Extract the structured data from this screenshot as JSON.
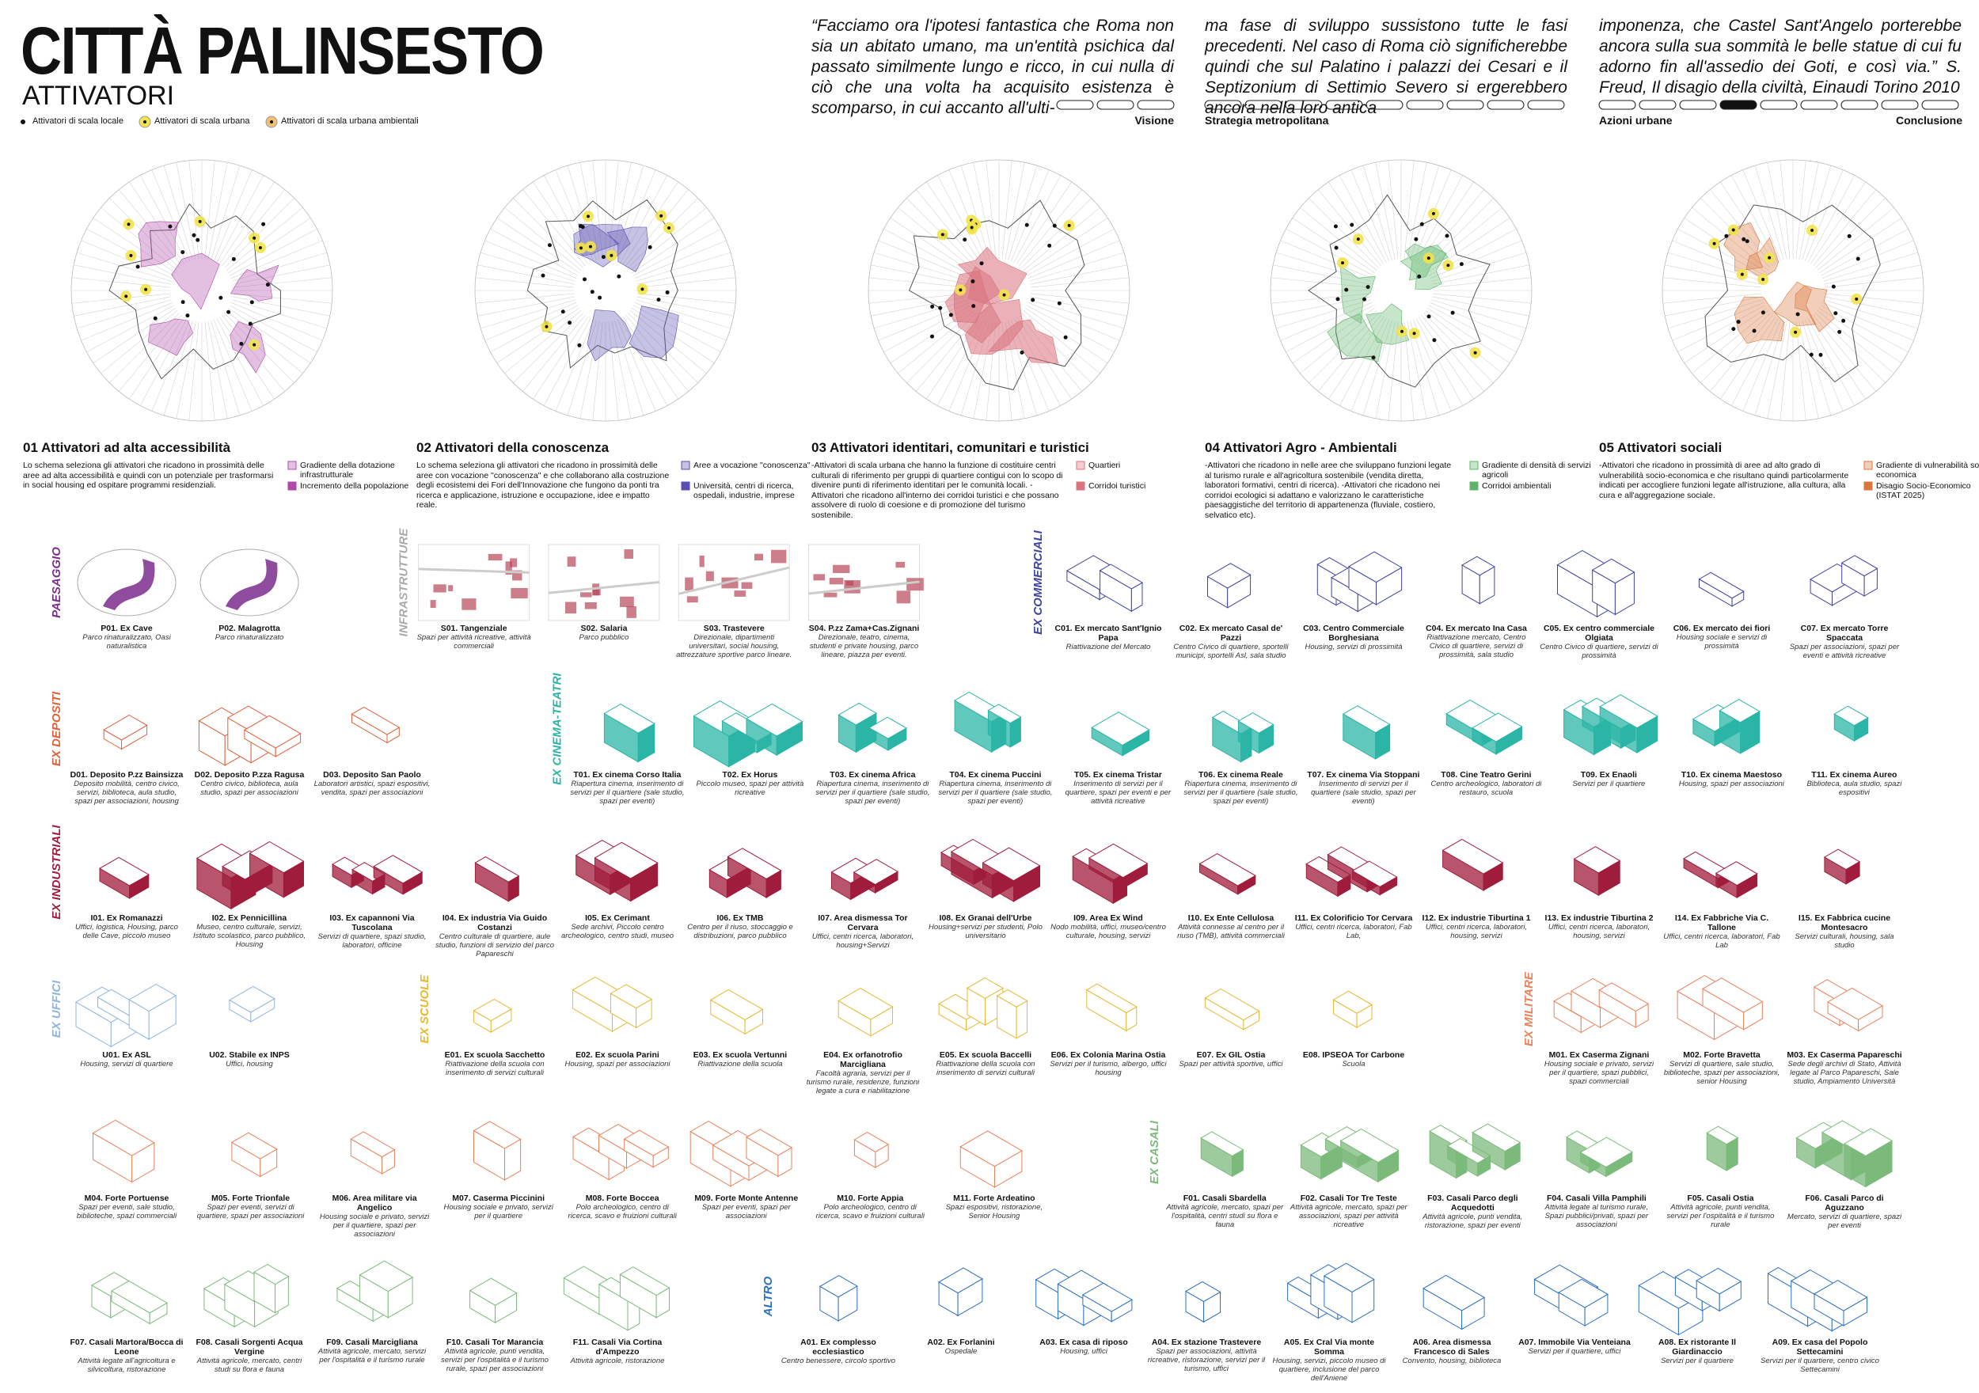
{
  "header": {
    "title": "CITTÀ PALINSESTO",
    "subtitle": "ATTIVATORI"
  },
  "legend": [
    "Attivatori di scala locale",
    "Attivatori di scala urbana",
    "Attivatori di scala urbana ambientali"
  ],
  "quote": [
    "“Facciamo ora l'ipotesi fantastica che Roma non sia un abitato umano, ma un'entità psichica dal passato similmente lungo e ricco, in cui nulla di ciò che una volta ha acquisito esistenza è scomparso, in cui accanto all'ulti-",
    "ma fase di sviluppo sussistono tutte le fasi precedenti. Nel caso di Roma ciò significherebbe quindi che sul Palatino i palazzi dei Cesari e il Septizonium di Settimio Severo si ergerebbero ancora nella loro antica",
    "imponenza, che Castel Sant'Angelo porterebbe ancora sulla sua sommità le belle statue di cui fu adorno fin all'assedio dei Goti, e così via.” S. Freud, Il disagio della civiltà, Einaudi Torino 2010"
  ],
  "nav": [
    "Visione",
    "Strategia metropolitana",
    "Azioni urbane",
    "Conclusione"
  ],
  "panels": [
    {
      "title": "01 Attivatori ad alta accessibilità",
      "color": "#b04aa8",
      "text": "Lo schema seleziona gli attivatori che ricadono in prossimità delle aree ad alta accessibilità e quindi con un potenziale per trasformarsi in social housing ed ospitare programmi residenziali.",
      "legend": [
        "Gradiente della dotazione infrastrutturale",
        "Incremento della popolazione"
      ]
    },
    {
      "title": "02 Attivatori della conoscenza",
      "color": "#5a4fb0",
      "text": "Lo schema seleziona gli attivatori che ricadono in prossimità delle aree con vocazione \"conoscenza\" e che collaborano alla costruzione degli ecosistemi dei Fori dell'Innovazione che fungono da ponti tra ricerca e applicazione, istruzione e occupazione, idee e impatto reale.",
      "legend": [
        "Aree a vocazione \"conoscenza\"",
        "Università, centri di ricerca, ospedali, industrie, imprese"
      ]
    },
    {
      "title": "03 Attivatori identitari, comunitari e turistici",
      "color": "#d9737e",
      "text": "-Attivatori di scala urbana che hanno la funzione di costituire centri culturali di riferimento per gruppi di quartiere contigui con lo scopo di divenire punti di riferimento identitari per le comunità locali. -Attivatori che ricadono all'interno dei corridoi turistici e che possano assolvere di ruolo di coesione e di promozione del turismo sostenibile.",
      "legend": [
        "Quartieri",
        "Corridoi turistici"
      ]
    },
    {
      "title": "04 Attivatori Agro - Ambientali",
      "color": "#5fb46a",
      "text": "-Attivatori che ricadono in nelle aree che sviluppano funzioni legate al turismo rurale e all'agricoltura sostenibile (vendita diretta, laboratori formativi, centri di ricerca). -Attivatori che ricadono nei corridoi ecologici si adattano e valorizzano le caratteristiche paesaggistiche del territorio di appartenenza (fluviale, costiero, selvatico etc).",
      "legend": [
        "Gradiente di densità di servizi agricoli",
        "Corridoi ambientali"
      ]
    },
    {
      "title": "05 Attivatori sociali",
      "color": "#d9763a",
      "text": "-Attivatori che ricadono in prossimità di aree ad alto grado di vulnerabilità socio-economica e che risultano quindi particolarmente indicati per accogliere funzioni legate all'istruzione, alla cultura, alla cura e all'aggregazione sociale.",
      "legend": [
        "Gradiente di vulnerabilità socio-economica",
        "Disagio Socio-Economico (ISTAT 2025)"
      ]
    }
  ],
  "groups": [
    {
      "label": "PAESAGGIO",
      "color": "#7b2d8e",
      "items": [
        {
          "name": "P01. Ex Cave",
          "desc": "Parco rinaturalizzato, Oasi naturalistica"
        },
        {
          "name": "P02. Malagrotta",
          "desc": "Parco rinaturalizzato"
        }
      ]
    },
    {
      "label": "INFRASTRUTTURE",
      "color": "#a9a9a9",
      "items": [
        {
          "name": "S01. Tangenziale",
          "desc": "Spazi per attività ricreative, attività commerciali"
        },
        {
          "name": "S02. Salaria",
          "desc": "Parco pubblico"
        },
        {
          "name": "S03. Trastevere",
          "desc": "Direzionale, dipartimenti universitari, social housing, attrezzature sportive parco lineare."
        },
        {
          "name": "S04. P.zz Zama+Cas.Zignani",
          "desc": "Direzionale, teatro, cinema, studenti e private housing, parco lineare, piazza per eventi."
        }
      ]
    },
    {
      "label": "EX COMMERCIALI",
      "color": "#3f43a0",
      "items": [
        {
          "name": "C01. Ex mercato Sant'Ignio Papa",
          "desc": "Riattivazione del Mercato"
        },
        {
          "name": "C02. Ex mercato Casal de' Pazzi",
          "desc": "Centro Civico di quartiere, sportelli municipi, sportelli Asl, sala studio"
        },
        {
          "name": "C03. Centro Commerciale Borghesiana",
          "desc": "Housing, servizi di prossimità"
        },
        {
          "name": "C04. Ex mercato Ina Casa",
          "desc": "Riattivazione mercato, Centro Civico di quartiere, servizi di prossimità, sala studio"
        },
        {
          "name": "C05. Ex centro commerciale Olgiata",
          "desc": "Centro Civico di quartiere, servizi di prossimità"
        },
        {
          "name": "C06. Ex mercato dei fiori",
          "desc": "Housing sociale e servizi di prossimità"
        },
        {
          "name": "C07. Ex mercato Torre Spaccata",
          "desc": "Spazi per associazioni, spazi per eventi e attività ricreative"
        }
      ]
    },
    {
      "label": "EX DEPOSITI",
      "color": "#e0603a",
      "items": [
        {
          "name": "D01. Deposito P.zz Bainsizza",
          "desc": "Deposito mobilità, centro civico, servizi, biblioteca, aula studio, spazi per associazioni, housing"
        },
        {
          "name": "D02. Deposito P.zza Ragusa",
          "desc": "Centro civico, biblioteca, aula studio, spazi per associazioni"
        },
        {
          "name": "D03. Deposito San Paolo",
          "desc": "Laboratori artistici, spazi espositivi, vendita, spazi per associazioni"
        }
      ]
    },
    {
      "label": "EX CINEMA-TEATRI",
      "color": "#2bb5a7",
      "items": [
        {
          "name": "T01. Ex cinema Corso Italia",
          "desc": "Riapertura cinema, inserimento di servizi per il quartiere (sale studio, spazi per eventi)"
        },
        {
          "name": "T02. Ex Horus",
          "desc": "Piccolo museo, spazi per attività ricreative"
        },
        {
          "name": "T03. Ex cinema Africa",
          "desc": "Riapertura cinema, inserimento di servizi per il quartiere (sale studio, spazi per eventi)"
        },
        {
          "name": "T04. Ex cinema Puccini",
          "desc": "Riapertura cinema, inserimento di servizi per il quartiere (sale studio, spazi per eventi)"
        },
        {
          "name": "T05. Ex cinema Tristar",
          "desc": "Inserimento di servizi per il quartiere, spazi per eventi e per attività ricreative"
        },
        {
          "name": "T06. Ex cinema Reale",
          "desc": "Riapertura cinema, inserimento di servizi per il quartiere (sale studio, spazi per eventi)"
        },
        {
          "name": "T07. Ex cinema Via Stoppani",
          "desc": "Inserimento di servizi per il quartiere (sale studio, spazi per eventi)"
        },
        {
          "name": "T08. Cine Teatro Gerini",
          "desc": "Centro archeologico, laboratori di restauro, scuola"
        },
        {
          "name": "T09. Ex Enaoli",
          "desc": "Servizi per il quartiere"
        },
        {
          "name": "T10. Ex cinema Maestoso",
          "desc": "Housing, spazi per associazioni"
        },
        {
          "name": "T11. Ex cinema Aureo",
          "desc": "Biblioteca, aula studio, spazi espositivi"
        }
      ]
    },
    {
      "label": "EX INDUSTRIALI",
      "color": "#a01c3c",
      "items": [
        {
          "name": "I01. Ex Romanazzi",
          "desc": "Uffici, logistica, Housing, parco delle Cave, piccolo museo"
        },
        {
          "name": "I02. Ex Pennicillina",
          "desc": "Museo, centro culturale, servizi, Istituto scolastico, parco pubblico, Housing"
        },
        {
          "name": "I03. Ex capannoni Via Tuscolana",
          "desc": "Servizi di quartiere, spazi studio, laboratori, officine"
        },
        {
          "name": "I04. Ex industria Via Guido Costanzi",
          "desc": "Centro culturale di quartiere, aule studio, funzioni di servizio del parco Papareschi"
        },
        {
          "name": "I05. Ex Cerimant",
          "desc": "Sede archivi, Piccolo centro archeologico, centro studi, museo"
        },
        {
          "name": "I06. Ex TMB",
          "desc": "Centro per il riuso, stoccaggio e distribuzioni, parco pubblico"
        },
        {
          "name": "I07. Area dismessa Tor Cervara",
          "desc": "Uffici, centri ricerca, laboratori, housing+Servizi"
        },
        {
          "name": "I08. Ex Granai dell'Urbe",
          "desc": "Housing+servizi per studenti, Polo universitario"
        },
        {
          "name": "I09. Area Ex Wind",
          "desc": "Nodo mobilità, uffici, museo/centro culturale, housing, servizi"
        },
        {
          "name": "I10. Ex Ente Cellulosa",
          "desc": "Attività connesse al centro per il riuso (TMB), attività commerciali"
        },
        {
          "name": "I11. Ex Colorificio Tor Cervara",
          "desc": "Uffici, centri ricerca, laboratori, Fab Lab,"
        },
        {
          "name": "I12. Ex industrie Tiburtina 1",
          "desc": "Uffici, centri ricerca, laboratori, housing, servizi"
        },
        {
          "name": "I13. Ex industrie Tiburtina 2",
          "desc": "Uffici, centri ricerca, laboratori, housing, servizi"
        },
        {
          "name": "I14. Ex Fabbriche Via C. Tallone",
          "desc": "Uffici, centri ricerca, laboratori, Fab Lab"
        },
        {
          "name": "I15. Ex Fabbrica cucine Montesacro",
          "desc": "Servizi culturali, housing, sala studio"
        }
      ]
    },
    {
      "label": "EX UFFICI",
      "color": "#8fb4e0",
      "items": [
        {
          "name": "U01. Ex ASL",
          "desc": "Housing, servizi di quartiere"
        },
        {
          "name": "U02. Stabile ex INPS",
          "desc": "Uffici, housing"
        }
      ]
    },
    {
      "label": "EX SCUOLE",
      "color": "#e8b830",
      "items": [
        {
          "name": "E01. Ex scuola Sacchetto",
          "desc": "Riattivazione della scuola con inserimento di servizi culturali"
        },
        {
          "name": "E02. Ex scuola Parini",
          "desc": "Housing, spazi per associazioni"
        },
        {
          "name": "E03. Ex scuola Vertunni",
          "desc": "Riattivazione della scuola"
        },
        {
          "name": "E04. Ex orfanotrofio Marcigliana",
          "desc": "Facoltà agraria, servizi per il turismo rurale, residenze, funzioni legate a cura e riabilitazione"
        },
        {
          "name": "E05. Ex scuola Baccelli",
          "desc": "Riattivazione della scuola con inserimento di servizi culturali"
        },
        {
          "name": "E06. Ex Colonia Marina Ostia",
          "desc": "Servizi per il turismo, albergo, uffici housing"
        },
        {
          "name": "E07. Ex GIL Ostia",
          "desc": "Spazi per attività sportive, uffici"
        },
        {
          "name": "E08. IPSEOA Tor Carbone",
          "desc": "Scuola"
        }
      ]
    },
    {
      "label": "EX MILITARE",
      "color": "#e8825a",
      "items": [
        {
          "name": "M01. Ex Caserma Zignani",
          "desc": "Housing sociale e privato, servizi per il quartiere, spazi pubblici, spazi commerciali"
        },
        {
          "name": "M02. Forte Bravetta",
          "desc": "Servizi di quartiere, sale studio, biblioteche, spazi per associazioni, senior Housing"
        },
        {
          "name": "M03. Ex Caserma Papareschi",
          "desc": "Sede degli archivi di Stato, Attività legate al Parco Papareschi, Sale studio, Ampiamento Università"
        },
        {
          "name": "M04. Forte Portuense",
          "desc": "Spazi per eventi, sale studio, biblioteche, spazi commerciali"
        },
        {
          "name": "M05. Forte Trionfale",
          "desc": "Spazi per eventi, servizi di quartiere, spazi per associazioni"
        },
        {
          "name": "M06. Area militare via Angelico",
          "desc": "Housing sociale e privato, servizi per il quartiere, spazi per associazioni"
        },
        {
          "name": "M07. Caserma Piccinini",
          "desc": "Housing sociale e privato, servizi per il quartiere"
        },
        {
          "name": "M08. Forte Boccea",
          "desc": "Polo archeologico, centro di ricerca, scavo e fruizioni culturali"
        },
        {
          "name": "M09. Forte Monte Antenne",
          "desc": "Spazi per eventi, spazi per associazioni"
        },
        {
          "name": "M10. Forte Appia",
          "desc": "Polo archeologico, centro di ricerca, scavo e fruizioni culturali"
        },
        {
          "name": "M11. Forte Ardeatino",
          "desc": "Spazi espositivi, ristorazione, Senior Housing"
        }
      ]
    },
    {
      "label": "EX CASALI",
      "color": "#7cba7c",
      "items": [
        {
          "name": "F01. Casali Sbardella",
          "desc": "Attività agricole, mercato, spazi per l'ospitalità, centri studi su flora e fauna"
        },
        {
          "name": "F02. Casali Tor Tre Teste",
          "desc": "Attività agricole, mercato, spazi per associazioni, spazi per attività ricreative"
        },
        {
          "name": "F03. Casali Parco degli Acquedotti",
          "desc": "Attività agricole, punti vendita, ristorazione, spazi per eventi"
        },
        {
          "name": "F04. Casali Villa Pamphili",
          "desc": "Attività legate al turismo rurale, Spazi pubblici/privati, spazi per associazioni"
        },
        {
          "name": "F05. Casali Ostia",
          "desc": "Attività agricole, punti vendita, servizi per l'ospitalità e il turismo rurale"
        },
        {
          "name": "F06. Casali Parco di Aguzzano",
          "desc": "Mercato, servizi di quartiere, spazi per eventi"
        },
        {
          "name": "F07. Casali Martora/Bocca di Leone",
          "desc": "Attività legate all'agricoltura e silvicoltura, ristorazione"
        },
        {
          "name": "F08. Casali Sorgenti Acqua Vergine",
          "desc": "Attività agricole, mercato, centri studi su flora e fauna"
        },
        {
          "name": "F09. Casali Marcigliana",
          "desc": "Attività agricole, mercato, servizi per l'ospitalità e il turismo rurale"
        },
        {
          "name": "F10. Casali Tor Marancia",
          "desc": "Attività agricole, punti vendita, servizi per l'ospitalità e il turismo rurale, spazi per associazioni"
        },
        {
          "name": "F11. Casali Via Cortina d'Ampezzo",
          "desc": "Attività agricole, ristorazione"
        }
      ]
    },
    {
      "label": "ALTRO",
      "color": "#2c6fc0",
      "items": [
        {
          "name": "A01. Ex complesso ecclesiastico",
          "desc": "Centro benessere, circolo sportivo"
        },
        {
          "name": "A02. Ex Forlanini",
          "desc": "Ospedale"
        },
        {
          "name": "A03. Ex casa di riposo",
          "desc": "Housing, uffici"
        },
        {
          "name": "A04. Ex stazione Trastevere",
          "desc": "Spazi per associazioni, attività ricreative, ristorazione, servizi per il turismo, uffici"
        },
        {
          "name": "A05. Ex Cral Via monte Somma",
          "desc": "Housing, servizi, piccolo museo di quartiere, inclusione del parco dell'Aniene"
        },
        {
          "name": "A06. Area dismessa Francesco di Sales",
          "desc": "Convento, housing, biblioteca"
        },
        {
          "name": "A07. Immobile Via Venteiana",
          "desc": "Servizi per il quartiere, uffici"
        },
        {
          "name": "A08. Ex ristorante Il Giardinaccio",
          "desc": "Servizi per il quartiere"
        },
        {
          "name": "A09. Ex casa del Popolo Settecamini",
          "desc": "Servizi per il quartiere, centro civico Settecamini"
        }
      ]
    }
  ]
}
